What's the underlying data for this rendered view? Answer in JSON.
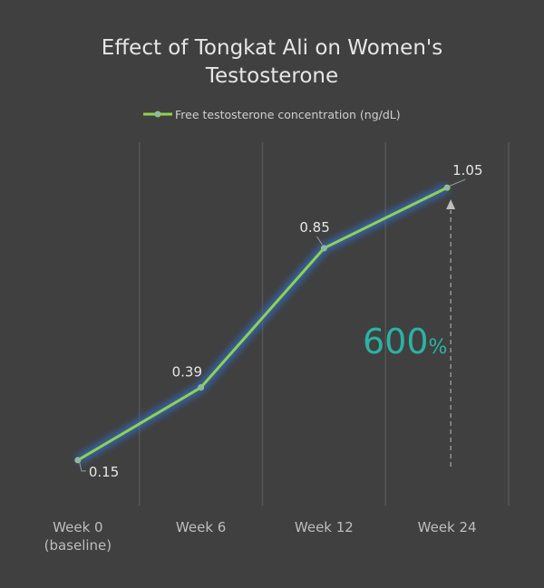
{
  "chart_data": {
    "type": "line",
    "title": "Effect of Tongkat Ali on Women's Testosterone",
    "categories": [
      "Week 0\n(baseline)",
      "Week 6",
      "Week 12",
      "Week 24"
    ],
    "series": [
      {
        "name": "Free testosterone concentration (ng/dL)",
        "values": [
          0.15,
          0.39,
          0.85,
          1.05
        ],
        "color": "#8fd14f",
        "marker_color": "#8fb0c8",
        "glow_color": "#2f6fd6"
      }
    ],
    "data_labels": [
      "0.15",
      "0.39",
      "0.85",
      "1.05"
    ],
    "ylim": [
      0,
      1.2
    ],
    "ystep": 0.2,
    "y_tick_labels_shown": false,
    "grid": true,
    "legend": "top-center",
    "annotation": {
      "value": "600",
      "unit": "%",
      "color": "#2ab3a3",
      "arrow": "dashed-up",
      "from_category": "Week 24"
    },
    "background": "#404040",
    "grid_color": "#555555",
    "text_color": "#e6e6e6",
    "tick_color": "#bdbdbd"
  }
}
